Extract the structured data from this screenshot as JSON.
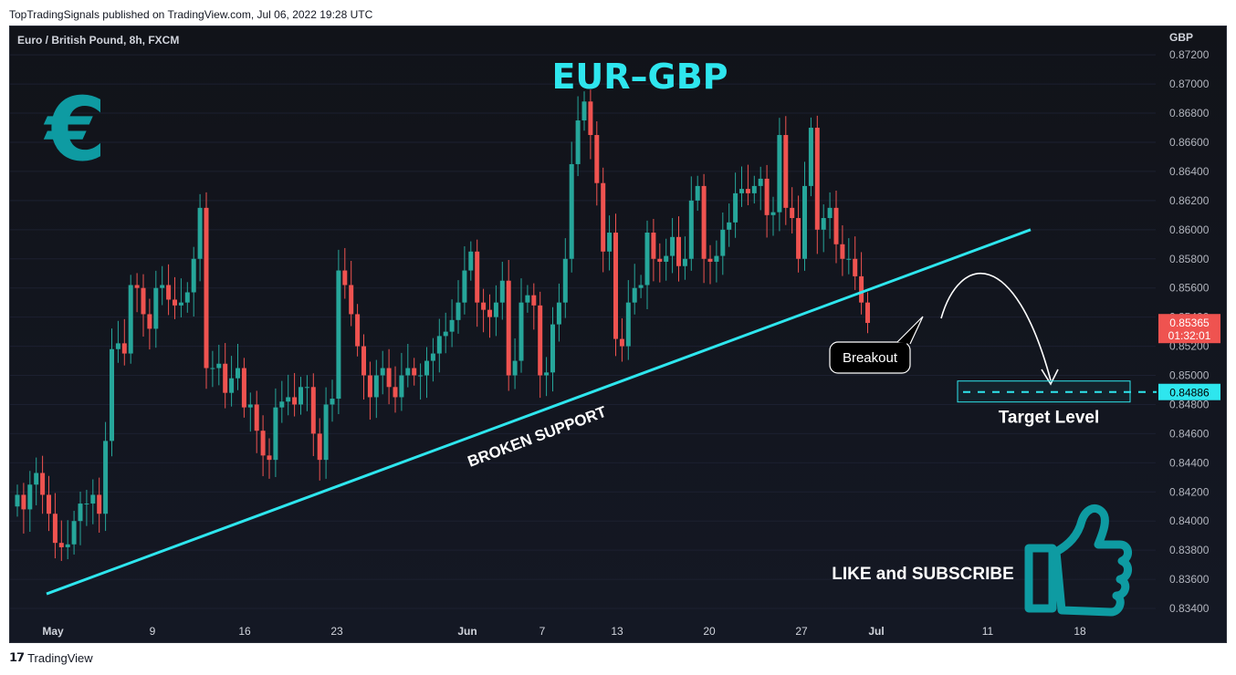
{
  "header": {
    "published_line": "TopTradingSignals published on TradingView.com, Jul 06, 2022 19:28 UTC"
  },
  "chart_header": {
    "symbol": "Euro / British Pound, 8h, FXCM"
  },
  "footer": {
    "brand": "TradingView"
  },
  "colors": {
    "up": "#26a69a",
    "down": "#ef5350",
    "trendline": "#2ee6ee",
    "title": "#2ee6ee",
    "icon_teal": "#0e9ba2",
    "price_badge": "#ef5350",
    "target_badge": "#2ee6ee"
  },
  "chart_data": {
    "type": "candlestick",
    "title": "EUR–GBP",
    "instrument": "Euro / British Pound",
    "timeframe": "8h",
    "source": "FXCM",
    "currency_label": "GBP",
    "ylim": [
      0.833,
      0.8727
    ],
    "y_ticks": [
      "0.87200",
      "0.87000",
      "0.86800",
      "0.86600",
      "0.86400",
      "0.86200",
      "0.86000",
      "0.85800",
      "0.85600",
      "0.85400",
      "0.85200",
      "0.85000",
      "0.84800",
      "0.84600",
      "0.84400",
      "0.84200",
      "0.84000",
      "0.83800",
      "0.83600",
      "0.83400"
    ],
    "x_ticks": [
      {
        "label": "May",
        "bold": true
      },
      {
        "label": "9",
        "bold": false
      },
      {
        "label": "16",
        "bold": false
      },
      {
        "label": "23",
        "bold": false
      },
      {
        "label": "Jun",
        "bold": true
      },
      {
        "label": "7",
        "bold": false
      },
      {
        "label": "13",
        "bold": false
      },
      {
        "label": "20",
        "bold": false
      },
      {
        "label": "27",
        "bold": false
      },
      {
        "label": "Jul",
        "bold": true
      },
      {
        "label": "11",
        "bold": false
      },
      {
        "label": "18",
        "bold": false
      }
    ],
    "closes": [
      0.8418,
      0.8408,
      0.8425,
      0.8433,
      0.8418,
      0.8405,
      0.8385,
      0.8382,
      0.8384,
      0.84,
      0.8412,
      0.8412,
      0.8418,
      0.8405,
      0.8455,
      0.8518,
      0.8522,
      0.8515,
      0.8562,
      0.856,
      0.8542,
      0.8532,
      0.856,
      0.8562,
      0.8552,
      0.8548,
      0.855,
      0.8557,
      0.858,
      0.8615,
      0.8505,
      0.8505,
      0.8508,
      0.8488,
      0.8498,
      0.8505,
      0.8478,
      0.848,
      0.8462,
      0.8445,
      0.8442,
      0.8478,
      0.8482,
      0.8485,
      0.848,
      0.8492,
      0.8492,
      0.846,
      0.8442,
      0.848,
      0.8484,
      0.8572,
      0.8562,
      0.8542,
      0.852,
      0.85,
      0.8485,
      0.85,
      0.8505,
      0.8492,
      0.8485,
      0.85,
      0.8505,
      0.85,
      0.85,
      0.851,
      0.8515,
      0.8527,
      0.853,
      0.8538,
      0.855,
      0.8572,
      0.8585,
      0.855,
      0.8545,
      0.854,
      0.855,
      0.8565,
      0.85,
      0.851,
      0.855,
      0.8555,
      0.8548,
      0.85,
      0.8502,
      0.8535,
      0.855,
      0.858,
      0.8645,
      0.8675,
      0.8688,
      0.8665,
      0.8632,
      0.8585,
      0.8598,
      0.8525,
      0.852,
      0.855,
      0.856,
      0.8562,
      0.8598,
      0.858,
      0.8578,
      0.8582,
      0.8595,
      0.8575,
      0.858,
      0.862,
      0.863,
      0.858,
      0.8578,
      0.8582,
      0.86,
      0.8605,
      0.8625,
      0.8628,
      0.8625,
      0.863,
      0.8635,
      0.861,
      0.8612,
      0.8665,
      0.8615,
      0.8608,
      0.858,
      0.863,
      0.867,
      0.86,
      0.8608,
      0.8615,
      0.859,
      0.858,
      0.858,
      0.8568,
      0.855,
      0.8536
    ],
    "breakout_label": "Breakout",
    "annotations": {
      "trendline_label": "BROKEN SUPPORT",
      "target_label": "Target Level",
      "cta": "LIKE and SUBSCRIBE",
      "currency_symbol": "€"
    },
    "last_price": {
      "value": "0.85365",
      "countdown": "01:32:01"
    },
    "target_price": {
      "value": 0.84886,
      "label": "0.84886"
    },
    "trendline": {
      "from": {
        "index": 0,
        "y": 0.835
      },
      "to": {
        "index": 142,
        "y": 0.86
      }
    },
    "projection_arrow": {
      "from": "Breakout",
      "to": "Target Level"
    }
  }
}
